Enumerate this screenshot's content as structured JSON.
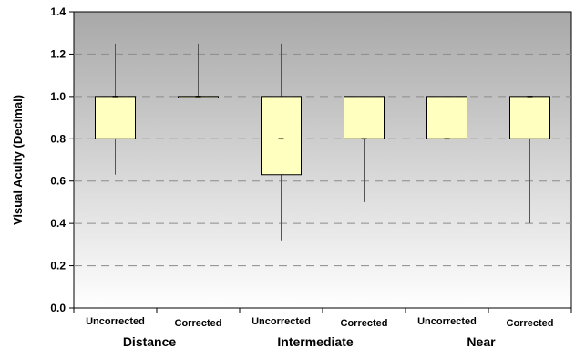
{
  "chart_data": {
    "type": "box",
    "ylabel": "Visual Acuity (Decimal)",
    "ylim": [
      0,
      1.4
    ],
    "yticks": [
      "0.0",
      "0.2",
      "0.4",
      "0.6",
      "0.8",
      "1.0",
      "1.2",
      "1.4"
    ],
    "grid": "horizontal-dashed",
    "groups": [
      "Distance",
      "Intermediate",
      "Near"
    ],
    "categories": [
      "Uncorrected",
      "Corrected",
      "Uncorrected",
      "Corrected",
      "Uncorrected",
      "Corrected"
    ],
    "colors": {
      "box_fill": "#ffffc0",
      "plot_bg_top": "#a8a8a8",
      "plot_bg_bottom": "#ffffff",
      "grid": "#8c8c8c"
    },
    "boxes": [
      {
        "min": 0.63,
        "q1": 0.8,
        "median": 1.0,
        "q3": 1.0,
        "max": 1.25
      },
      {
        "min": 1.0,
        "q1": 1.0,
        "median": 1.0,
        "q3": 1.0,
        "max": 1.25
      },
      {
        "min": 0.32,
        "q1": 0.63,
        "median": 0.8,
        "q3": 1.0,
        "max": 1.25
      },
      {
        "min": 0.5,
        "q1": 0.8,
        "median": 0.8,
        "q3": 1.0,
        "max": 1.0
      },
      {
        "min": 0.5,
        "q1": 0.8,
        "median": 0.8,
        "q3": 1.0,
        "max": 1.0
      },
      {
        "min": 0.4,
        "q1": 0.8,
        "median": 1.0,
        "q3": 1.0,
        "max": 1.0
      }
    ]
  }
}
